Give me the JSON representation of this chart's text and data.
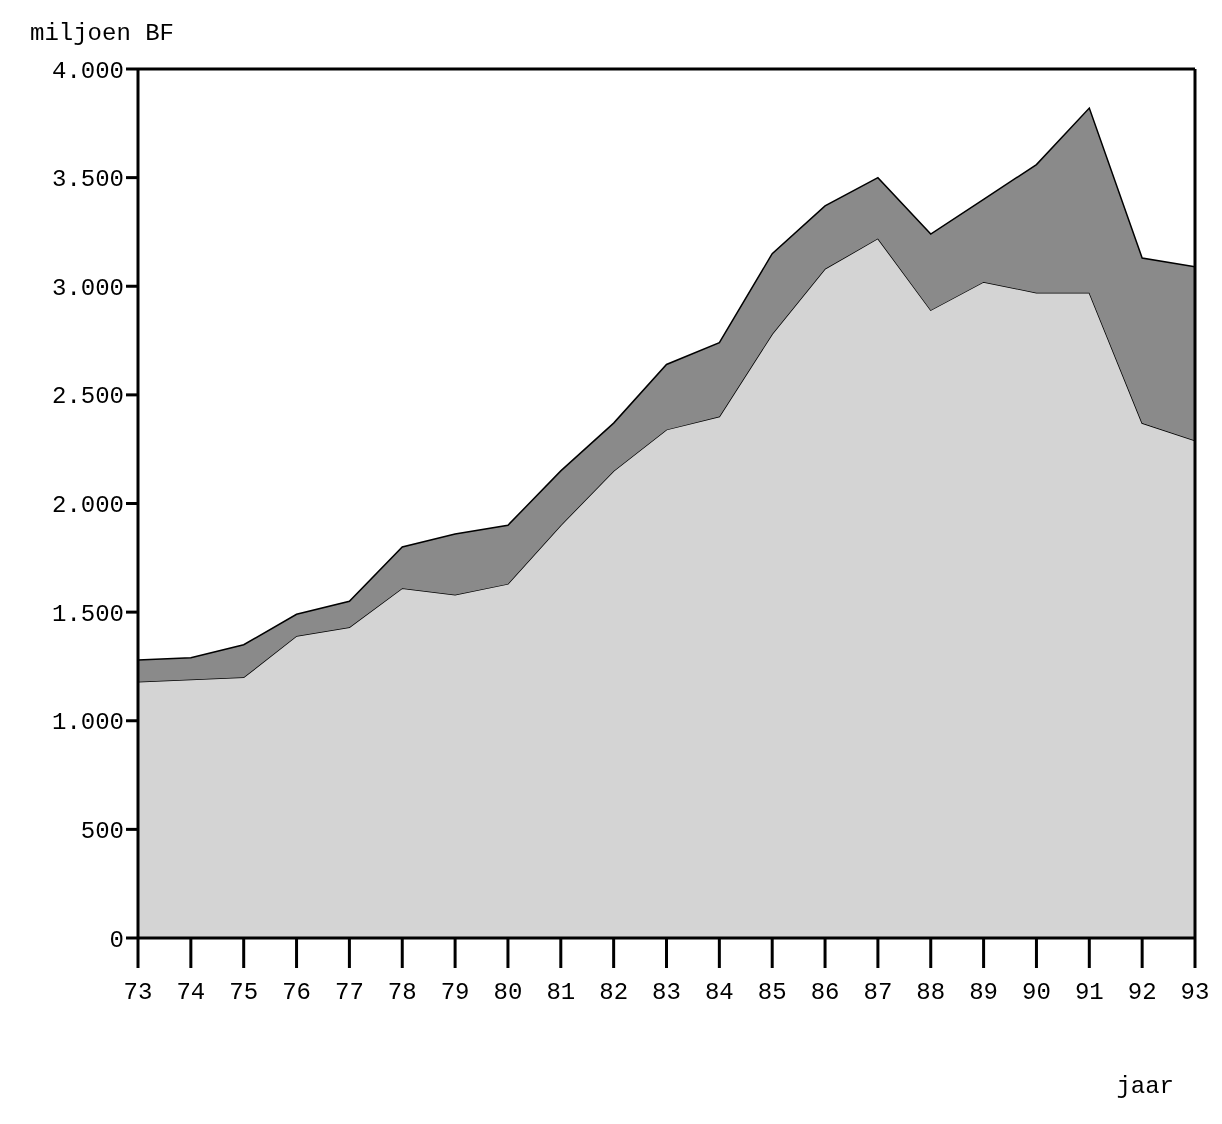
{
  "chart_data": {
    "type": "area",
    "stacked": true,
    "ylabel": "miljoen BF",
    "xlabel": "jaar",
    "categories": [
      "73",
      "74",
      "75",
      "76",
      "77",
      "78",
      "79",
      "80",
      "81",
      "82",
      "83",
      "84",
      "85",
      "86",
      "87",
      "88",
      "89",
      "90",
      "91",
      "92",
      "93"
    ],
    "series": [
      {
        "color": "#d4d4d4",
        "values": [
          1180,
          1190,
          1200,
          1390,
          1430,
          1610,
          1580,
          1630,
          1900,
          2150,
          2340,
          2400,
          2780,
          3080,
          3220,
          2890,
          3020,
          2970,
          2970,
          2370,
          2290
        ]
      },
      {
        "color": "#8a8a8a",
        "values": [
          100,
          100,
          150,
          100,
          120,
          190,
          280,
          270,
          250,
          220,
          300,
          340,
          370,
          290,
          280,
          350,
          380,
          590,
          850,
          760,
          800
        ]
      }
    ],
    "ylim": [
      0,
      4000
    ],
    "yticks": [
      {
        "value": 0,
        "label": "0"
      },
      {
        "value": 500,
        "label": "500"
      },
      {
        "value": 1000,
        "label": "1.000"
      },
      {
        "value": 1500,
        "label": "1.500"
      },
      {
        "value": 2000,
        "label": "2.000"
      },
      {
        "value": 2500,
        "label": "2.500"
      },
      {
        "value": 3000,
        "label": "3.000"
      },
      {
        "value": 3500,
        "label": "3.500"
      },
      {
        "value": 4000,
        "label": "4.000"
      }
    ],
    "grid": false,
    "legend": false
  }
}
